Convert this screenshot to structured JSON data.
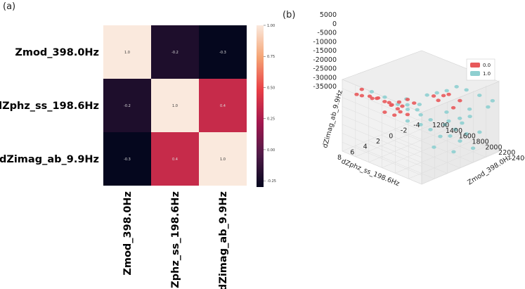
{
  "panels": {
    "a_label": "(a)",
    "b_label": "(b)"
  },
  "chart_data": [
    {
      "type": "heatmap",
      "variables": [
        "Zmod_398.0Hz",
        "dZphz_ss_198.6Hz",
        "dZimag_ab_9.9Hz"
      ],
      "matrix": [
        [
          1.0,
          -0.2,
          -0.3
        ],
        [
          -0.2,
          1.0,
          0.4
        ],
        [
          -0.3,
          0.4,
          1.0
        ]
      ],
      "cell_labels": [
        [
          "1.0",
          "-0.2",
          "-0.3"
        ],
        [
          "-0.2",
          "1.0",
          "0.4"
        ],
        [
          "-0.3",
          "0.4",
          "1.0"
        ]
      ],
      "colorbar": {
        "range": [
          -0.3,
          1.0
        ],
        "ticks": [
          1.0,
          0.75,
          0.5,
          0.25,
          0.0,
          -0.25
        ],
        "tick_labels": [
          "1.00",
          "0.75",
          "0.50",
          "0.25",
          "0.00",
          "-0.25"
        ]
      },
      "colors": {
        "low": "#05071e",
        "mid_low": "#4f1b48",
        "mid": "#a3174e",
        "mid_high": "#e83e46",
        "high_mid": "#f5a373",
        "high": "#fae9dd"
      }
    },
    {
      "type": "scatter",
      "dimensions": 3,
      "x_axis": {
        "label": "Zmod_398.0Hz",
        "ticks": [
          "1200",
          "1400",
          "1600",
          "1800",
          "2000",
          "2200",
          "2400"
        ],
        "range": [
          1200,
          2400
        ]
      },
      "y_axis": {
        "label": "dZphz_ss_198.6Hz",
        "ticks": [
          "8",
          "6",
          "4",
          "2",
          "0",
          "-2",
          "-4"
        ],
        "range": [
          -4,
          8
        ]
      },
      "z_axis": {
        "label": "dZimag_ab_9.9Hz",
        "ticks": [
          "5000",
          "0",
          "-5000",
          "-10000",
          "-15000",
          "-20000",
          "-25000",
          "-30000",
          "-35000"
        ],
        "range": [
          -35000,
          5000
        ]
      },
      "legend": {
        "position": "upper-right",
        "entries": [
          {
            "label": "0.0",
            "color": "#e8595b"
          },
          {
            "label": "1.0",
            "color": "#8ecfd0"
          }
        ]
      },
      "series": [
        {
          "name": "0.0",
          "color": "#e8595b",
          "points": [
            [
              1300,
              6,
              -2000
            ],
            [
              1350,
              6.5,
              -4000
            ],
            [
              1320,
              7,
              -3000
            ],
            [
              1450,
              5,
              -6000
            ],
            [
              1500,
              4.5,
              -8000
            ],
            [
              1520,
              4,
              -9000
            ],
            [
              1480,
              5.5,
              -5000
            ],
            [
              1550,
              4,
              -10000
            ],
            [
              1600,
              3.5,
              -12000
            ],
            [
              1580,
              4.2,
              -9000
            ],
            [
              1620,
              3,
              -11000
            ],
            [
              1650,
              3.8,
              -7000
            ],
            [
              1700,
              3,
              -6000
            ],
            [
              1750,
              2.5,
              -8000
            ],
            [
              1420,
              6,
              -4000
            ],
            [
              1530,
              4.8,
              -13000
            ],
            [
              1680,
              2.8,
              -15000
            ],
            [
              1900,
              1,
              -4000
            ],
            [
              2000,
              0.5,
              -3000
            ],
            [
              1950,
              0.8,
              -6000
            ],
            [
              2050,
              0.2,
              -2000
            ],
            [
              2150,
              -0.5,
              -5000
            ],
            [
              2100,
              0,
              -9000
            ],
            [
              1380,
              5.2,
              -7000
            ],
            [
              1610,
              3.2,
              -14000
            ],
            [
              1560,
              3.6,
              -16000
            ]
          ]
        },
        {
          "name": "1.0",
          "color": "#8ecfd0",
          "points": [
            [
              1700,
              3,
              -18000
            ],
            [
              1800,
              2,
              -20000
            ],
            [
              1900,
              1.5,
              -22000
            ],
            [
              2000,
              1,
              -25000
            ],
            [
              2100,
              0.5,
              -24000
            ],
            [
              2200,
              0,
              -26000
            ],
            [
              2300,
              -1,
              -30000
            ],
            [
              1950,
              2,
              -15000
            ],
            [
              1850,
              2.5,
              -13000
            ],
            [
              2050,
              0.8,
              -18000
            ],
            [
              2150,
              0.2,
              -20000
            ],
            [
              2250,
              -0.5,
              -22000
            ],
            [
              2350,
              -1.5,
              -21000
            ],
            [
              1750,
              3.5,
              -10000
            ],
            [
              1650,
              4,
              -8000
            ],
            [
              1800,
              1,
              -5000
            ],
            [
              1900,
              0.5,
              -3000
            ],
            [
              2000,
              0,
              -1000
            ],
            [
              2100,
              -0.5,
              2000
            ],
            [
              2200,
              -1,
              1000
            ],
            [
              2300,
              -2,
              -2000
            ],
            [
              2400,
              -3,
              -5000
            ],
            [
              1600,
              2,
              -12000
            ],
            [
              1700,
              1.5,
              -14000
            ],
            [
              2050,
              2.5,
              -28000
            ],
            [
              2250,
              1.5,
              -29000
            ],
            [
              1550,
              5,
              -4000
            ],
            [
              1450,
              6,
              -1000
            ],
            [
              2350,
              0,
              -10000
            ],
            [
              2150,
              -2,
              -12000
            ],
            [
              1900,
              -1,
              -16000
            ],
            [
              1980,
              -0.5,
              -19000
            ],
            [
              2080,
              -1.2,
              -17000
            ],
            [
              2280,
              0.5,
              -14000
            ],
            [
              2380,
              -2.5,
              -8000
            ],
            [
              1880,
              3,
              -6000
            ],
            [
              1780,
              4,
              -3000
            ]
          ]
        }
      ]
    }
  ]
}
